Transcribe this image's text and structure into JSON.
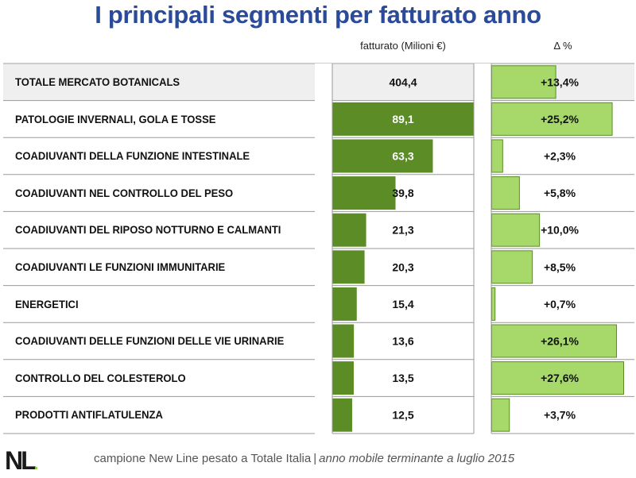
{
  "page": {
    "title": "I principali segmenti per fatturato anno",
    "footer_logo": "NL",
    "footer_source": "campione New Line pesato a Totale Italia",
    "footer_separator": "|",
    "footer_period": "anno mobile terminante a luglio 2015"
  },
  "colors": {
    "title": "#2a4a9a",
    "value_bar": "#5b8c26",
    "delta_bar": "#a6d96a",
    "delta_bar_border": "#5b8c26",
    "total_row_bg": "#efefef"
  },
  "chart_data": {
    "type": "table",
    "columns": [
      {
        "key": "value",
        "label": "fatturato (Milioni €)"
      },
      {
        "key": "delta",
        "label": "Δ %"
      }
    ],
    "rows": [
      {
        "label": "TOTALE MERCATO BOTANICALS",
        "value": 404.4,
        "value_text": "404,4",
        "delta": 13.4,
        "delta_text": "+13,4%",
        "total": true
      },
      {
        "label": "PATOLOGIE INVERNALI, GOLA E TOSSE",
        "value": 89.1,
        "value_text": "89,1",
        "delta": 25.2,
        "delta_text": "+25,2%"
      },
      {
        "label": "COADIUVANTI DELLA FUNZIONE INTESTINALE",
        "value": 63.3,
        "value_text": "63,3",
        "delta": 2.3,
        "delta_text": "+2,3%"
      },
      {
        "label": "COADIUVANTI NEL CONTROLLO DEL PESO",
        "value": 39.8,
        "value_text": "39,8",
        "delta": 5.8,
        "delta_text": "+5,8%"
      },
      {
        "label": "COADIUVANTI DEL RIPOSO NOTTURNO E CALMANTI",
        "value": 21.3,
        "value_text": "21,3",
        "delta": 10.0,
        "delta_text": "+10,0%"
      },
      {
        "label": "COADIUVANTI LE FUNZIONI IMMUNITARIE",
        "value": 20.3,
        "value_text": "20,3",
        "delta": 8.5,
        "delta_text": "+8,5%"
      },
      {
        "label": "ENERGETICI",
        "value": 15.4,
        "value_text": "15,4",
        "delta": 0.7,
        "delta_text": "+0,7%"
      },
      {
        "label": "COADIUVANTI DELLE FUNZIONI DELLE VIE URINARIE",
        "value": 13.6,
        "value_text": "13,6",
        "delta": 26.1,
        "delta_text": "+26,1%"
      },
      {
        "label": "CONTROLLO DEL COLESTEROLO",
        "value": 13.5,
        "value_text": "13,5",
        "delta": 27.6,
        "delta_text": "+27,6%"
      },
      {
        "label": "PRODOTTI ANTIFLATULENZA",
        "value": 12.5,
        "value_text": "12,5",
        "delta": 3.7,
        "delta_text": "+3,7%"
      }
    ],
    "value_range": [
      0,
      89.1
    ],
    "delta_range": [
      0,
      27.6
    ]
  }
}
